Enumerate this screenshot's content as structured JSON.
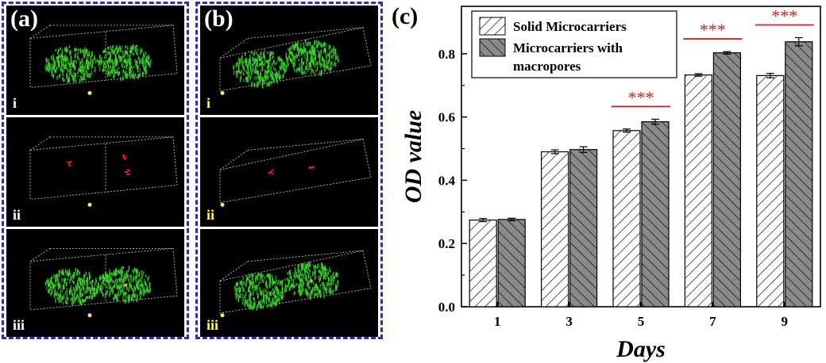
{
  "panel_a": {
    "letter": "(a)",
    "subpanels": [
      {
        "label": "i",
        "kind": "green"
      },
      {
        "label": "ii",
        "kind": "red"
      },
      {
        "label": "iii",
        "kind": "merge"
      }
    ]
  },
  "panel_b": {
    "letter": "(b)",
    "subpanels": [
      {
        "label": "i",
        "kind": "green"
      },
      {
        "label": "ii",
        "kind": "red"
      },
      {
        "label": "iii",
        "kind": "merge"
      }
    ]
  },
  "colors": {
    "green_cells": "#33dd22",
    "red_cells": "#ee2222",
    "significance": "#d02020",
    "bar_gray": "#8a8a8a",
    "panel_border": "#2a2ad0"
  },
  "chart_data": {
    "panel_label": "(c)",
    "type": "bar",
    "categories": [
      "1",
      "3",
      "5",
      "7",
      "9"
    ],
    "series": [
      {
        "name": "Solid Microcarriers",
        "pattern": "hatch-forward-white",
        "values": [
          0.274,
          0.49,
          0.557,
          0.733,
          0.731
        ],
        "errors": [
          0.005,
          0.006,
          0.005,
          0.004,
          0.007
        ]
      },
      {
        "name": "Microcarriers with macropores",
        "pattern": "hatch-back-gray",
        "values": [
          0.276,
          0.497,
          0.585,
          0.803,
          0.838
        ],
        "errors": [
          0.004,
          0.009,
          0.008,
          0.004,
          0.013
        ]
      }
    ],
    "legend_position": "top-left",
    "xlabel": "Days",
    "ylabel": "OD value",
    "ylim": [
      0,
      0.95
    ],
    "yticks": [
      "0.0",
      "0.2",
      "0.4",
      "0.6",
      "0.8"
    ],
    "grid": false,
    "annotations": [
      {
        "category": "5",
        "text": "***"
      },
      {
        "category": "7",
        "text": "***"
      },
      {
        "category": "9",
        "text": "***"
      }
    ]
  }
}
